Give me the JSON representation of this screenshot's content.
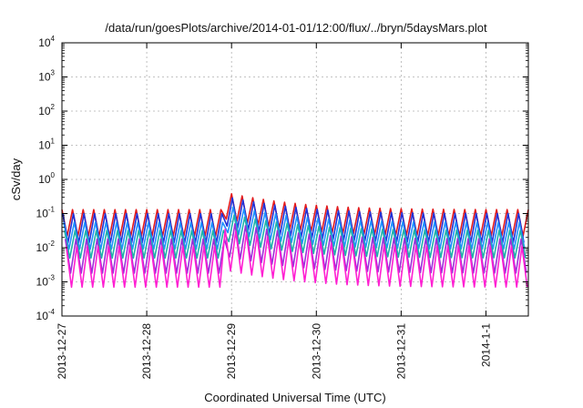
{
  "chart_data": {
    "type": "line",
    "title": "/data/run/goesPlots/archive/2014-01-01/12:00/flux/../bryn/5daysMars.plot",
    "xlabel": "Coordinated Universal Time (UTC)",
    "ylabel": "cSv/day",
    "yscale": "log",
    "ylim": [
      0.0001,
      10000
    ],
    "xlim": [
      "2013-12-27 00:00",
      "2014-01-01 12:00"
    ],
    "x_tick_labels": [
      "2013-12-27",
      "2013-12-28",
      "2013-12-29",
      "2013-12-30",
      "2013-12-31",
      "2014-1-1"
    ],
    "y_ticks": [
      {
        "base": "10",
        "exp": "-4"
      },
      {
        "base": "10",
        "exp": "-3"
      },
      {
        "base": "10",
        "exp": "-2"
      },
      {
        "base": "10",
        "exp": "-1"
      },
      {
        "base": "10",
        "exp": "0"
      },
      {
        "base": "10",
        "exp": "1"
      },
      {
        "base": "10",
        "exp": "2"
      },
      {
        "base": "10",
        "exp": "3"
      },
      {
        "base": "10",
        "exp": "4"
      }
    ],
    "grid": true,
    "legend": "none",
    "sawtooth_period_hours": 3,
    "event": {
      "start": "2013-12-28 22:00",
      "peak_factor": 3.2,
      "decay_hours": 14
    },
    "series": [
      {
        "color": "#e31a1c",
        "peak": 0.13,
        "trough": 0.022
      },
      {
        "color": "#1f2fd6",
        "peak": 0.1,
        "trough": 0.014
      },
      {
        "color": "#1e90ff",
        "peak": 0.055,
        "trough": 0.009
      },
      {
        "color": "#20b2aa",
        "peak": 0.032,
        "trough": 0.005
      },
      {
        "color": "#9b30d9",
        "peak": 0.018,
        "trough": 0.0018
      },
      {
        "color": "#ff1fd2",
        "peak": 0.011,
        "trough": 0.0007
      }
    ]
  }
}
